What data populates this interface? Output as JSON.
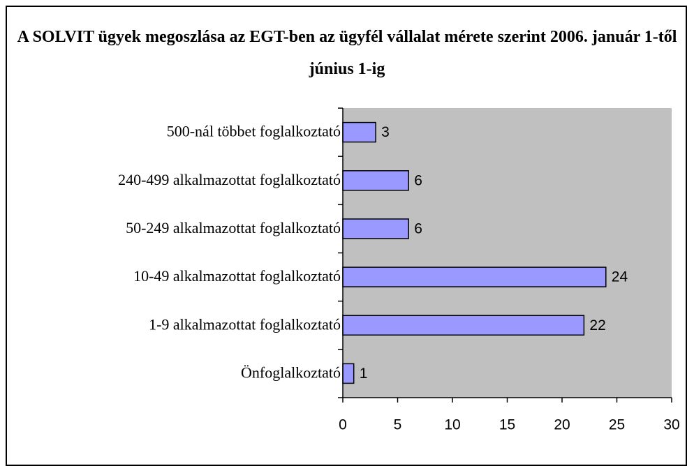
{
  "chart_data": {
    "type": "barh",
    "title": "A SOLVIT ügyek megoszlása az EGT-ben az ügyfél vállalat mérete szerint 2006. január 1-től június 1-ig",
    "categories": [
      "500-nál többet foglalkoztató",
      "240-499 alkalmazottat foglalkoztató",
      "50-249 alkalmazottat foglalkoztató",
      "10-49 alkalmazottat foglalkoztató",
      "1-9 alkalmazottat foglalkoztató",
      "Önfoglalkoztató"
    ],
    "values": [
      3,
      6,
      6,
      24,
      22,
      1
    ],
    "color": "#9999ff",
    "plot_background": "#c0c0c0",
    "xlim": [
      0,
      30
    ],
    "xticks": [
      0,
      5,
      10,
      15,
      20,
      25,
      30
    ],
    "grid": false
  }
}
